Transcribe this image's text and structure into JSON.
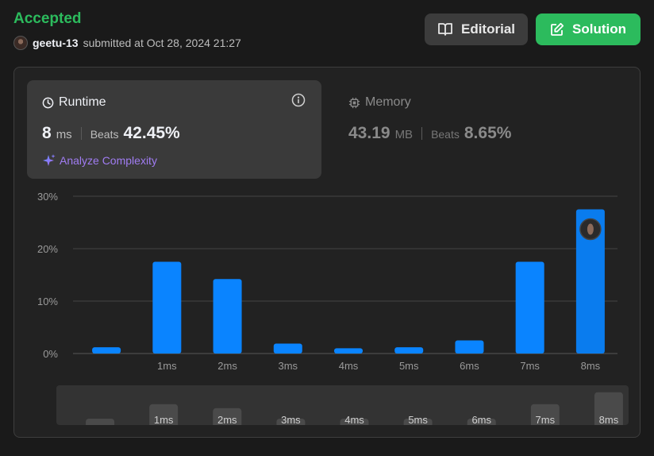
{
  "header": {
    "status": "Accepted",
    "user": "geetu-13",
    "submitted_text": "submitted at Oct 28, 2024 21:27"
  },
  "buttons": {
    "editorial": "Editorial",
    "solution": "Solution"
  },
  "runtime": {
    "title": "Runtime",
    "value": "8",
    "unit": "ms",
    "beats_label": "Beats",
    "beats_value": "42.45%",
    "analyze_label": "Analyze Complexity"
  },
  "memory": {
    "title": "Memory",
    "value": "43.19",
    "unit": "MB",
    "beats_label": "Beats",
    "beats_value": "8.65%"
  },
  "colors": {
    "accepted": "#2cbb5d",
    "bar": "#0a84ff",
    "bar_selected": "#0a7cee",
    "analyze": "#a07cf2"
  },
  "chart_data": {
    "type": "bar",
    "categories": [
      "",
      "1ms",
      "2ms",
      "3ms",
      "4ms",
      "5ms",
      "6ms",
      "7ms",
      "8ms"
    ],
    "values": [
      1.2,
      17.5,
      14.2,
      1.9,
      1.0,
      1.2,
      2.5,
      17.5,
      27.5
    ],
    "yticks": [
      "0%",
      "10%",
      "20%",
      "30%"
    ],
    "ylim": [
      0,
      30
    ],
    "selected": "8ms",
    "grid": true
  },
  "mini_chart": {
    "labels": [
      "",
      "1ms",
      "2ms",
      "3ms",
      "4ms",
      "5ms",
      "6ms",
      "7ms",
      "8ms"
    ]
  }
}
